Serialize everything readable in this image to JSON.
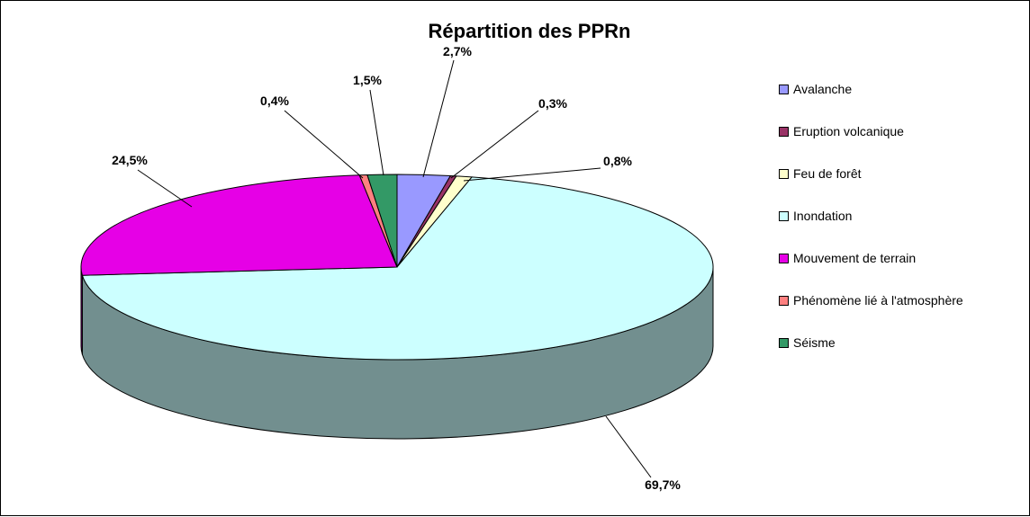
{
  "chart_data": {
    "type": "pie",
    "style": "3d-pie",
    "title": "Répartition des PPRn",
    "labels": [
      "Avalanche",
      "Eruption volcanique",
      "Feu de forêt",
      "Inondation",
      "Mouvement de terrain",
      "Phénomène lié à l'atmosphère",
      "Séisme"
    ],
    "values": [
      2.7,
      0.3,
      0.8,
      69.7,
      24.5,
      0.4,
      1.5
    ],
    "point_labels": [
      "2,7%",
      "0,3%",
      "0,8%",
      "69,7%",
      "24,5%",
      "0,4%",
      "1,5%"
    ],
    "colors": [
      "#9999FF",
      "#993366",
      "#FFFFCC",
      "#CCFFFF",
      "#E600E6",
      "#FF8080",
      "#339966"
    ],
    "keys": [
      "avalanche",
      "eruption-volcanique",
      "feu-de-foret",
      "inondation",
      "mouvement-de-terrain",
      "phenomene-atmosphere",
      "seisme"
    ],
    "legend_position": "right",
    "start_angle_deg": 0,
    "direction": "clockwise",
    "outline_color": "#000000",
    "background_color": "#FFFFFF"
  }
}
